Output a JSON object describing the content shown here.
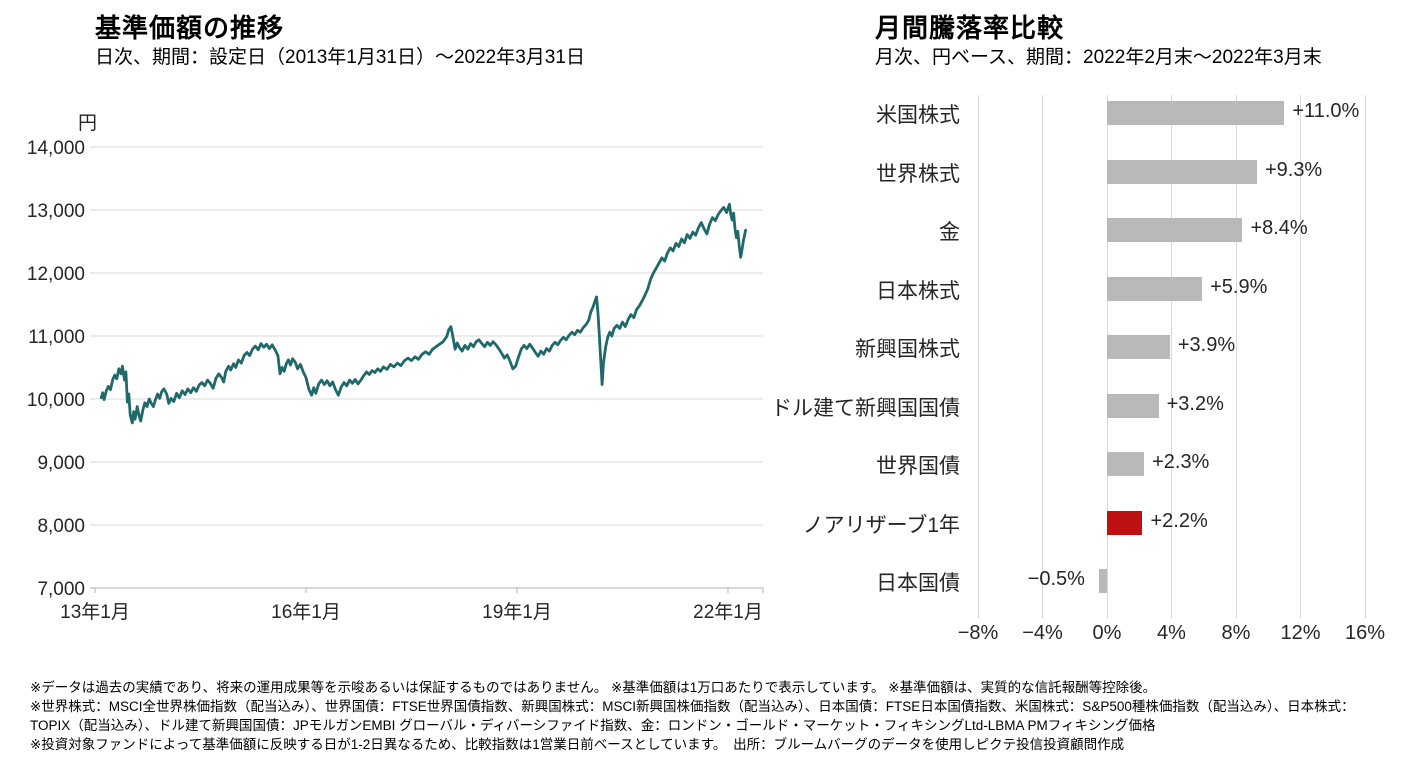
{
  "page": {
    "background": "#ffffff",
    "text_color": "#000000"
  },
  "chart_data": [
    {
      "type": "line",
      "title": "基準価額の推移",
      "subtitle": "日次、期間：設定日（2013年1月31日）～2022年3月31日",
      "unit_label": "円",
      "series_name": "基準価額",
      "line_color": "#20696b",
      "grid": "horizontal",
      "gridline_color": "#d9d9d9",
      "axis_color": "#bfbfbf",
      "ylim": [
        7000,
        14000
      ],
      "y_ticks": [
        14000,
        13000,
        12000,
        11000,
        10000,
        9000,
        8000,
        7000
      ],
      "y_tick_labels": [
        "14,000",
        "13,000",
        "12,000",
        "11,000",
        "10,000",
        "9,000",
        "8,000",
        "7,000"
      ],
      "xlim": [
        2012.93,
        2022.5
      ],
      "x_ticks": [
        2013,
        2016,
        2019,
        2022
      ],
      "x_tick_labels": [
        "13年1月",
        "16年1月",
        "19年1月",
        "22年1月"
      ],
      "points": [
        [
          2013.09,
          10020
        ],
        [
          2013.11,
          10100
        ],
        [
          2013.13,
          9990
        ],
        [
          2013.16,
          10130
        ],
        [
          2013.19,
          10200
        ],
        [
          2013.22,
          10150
        ],
        [
          2013.25,
          10300
        ],
        [
          2013.28,
          10380
        ],
        [
          2013.31,
          10320
        ],
        [
          2013.34,
          10480
        ],
        [
          2013.37,
          10400
        ],
        [
          2013.39,
          10520
        ],
        [
          2013.42,
          10300
        ],
        [
          2013.44,
          10430
        ],
        [
          2013.46,
          9950
        ],
        [
          2013.48,
          10080
        ],
        [
          2013.5,
          9750
        ],
        [
          2013.53,
          9620
        ],
        [
          2013.55,
          9800
        ],
        [
          2013.57,
          9680
        ],
        [
          2013.6,
          9880
        ],
        [
          2013.63,
          9720
        ],
        [
          2013.65,
          9650
        ],
        [
          2013.68,
          9820
        ],
        [
          2013.71,
          9940
        ],
        [
          2013.74,
          9880
        ],
        [
          2013.77,
          10000
        ],
        [
          2013.8,
          9930
        ],
        [
          2013.83,
          9880
        ],
        [
          2013.86,
          9990
        ],
        [
          2013.89,
          10080
        ],
        [
          2013.92,
          10010
        ],
        [
          2013.95,
          10120
        ],
        [
          2013.98,
          10160
        ],
        [
          2014.02,
          10080
        ],
        [
          2014.05,
          9930
        ],
        [
          2014.08,
          10010
        ],
        [
          2014.12,
          9960
        ],
        [
          2014.16,
          10090
        ],
        [
          2014.2,
          10020
        ],
        [
          2014.24,
          10130
        ],
        [
          2014.28,
          10070
        ],
        [
          2014.32,
          10160
        ],
        [
          2014.36,
          10100
        ],
        [
          2014.4,
          10180
        ],
        [
          2014.44,
          10120
        ],
        [
          2014.48,
          10220
        ],
        [
          2014.52,
          10260
        ],
        [
          2014.56,
          10210
        ],
        [
          2014.6,
          10300
        ],
        [
          2014.64,
          10250
        ],
        [
          2014.68,
          10170
        ],
        [
          2014.72,
          10330
        ],
        [
          2014.76,
          10400
        ],
        [
          2014.8,
          10340
        ],
        [
          2014.83,
          10270
        ],
        [
          2014.86,
          10440
        ],
        [
          2014.9,
          10520
        ],
        [
          2014.93,
          10460
        ],
        [
          2014.97,
          10560
        ],
        [
          2015.0,
          10500
        ],
        [
          2015.04,
          10620
        ],
        [
          2015.08,
          10570
        ],
        [
          2015.12,
          10690
        ],
        [
          2015.16,
          10740
        ],
        [
          2015.2,
          10690
        ],
        [
          2015.24,
          10790
        ],
        [
          2015.28,
          10840
        ],
        [
          2015.32,
          10780
        ],
        [
          2015.36,
          10880
        ],
        [
          2015.4,
          10820
        ],
        [
          2015.44,
          10870
        ],
        [
          2015.48,
          10800
        ],
        [
          2015.52,
          10860
        ],
        [
          2015.56,
          10780
        ],
        [
          2015.6,
          10690
        ],
        [
          2015.63,
          10400
        ],
        [
          2015.66,
          10500
        ],
        [
          2015.69,
          10440
        ],
        [
          2015.72,
          10560
        ],
        [
          2015.75,
          10620
        ],
        [
          2015.78,
          10540
        ],
        [
          2015.81,
          10640
        ],
        [
          2015.85,
          10580
        ],
        [
          2015.88,
          10480
        ],
        [
          2015.92,
          10550
        ],
        [
          2015.96,
          10430
        ],
        [
          2016.0,
          10340
        ],
        [
          2016.04,
          10160
        ],
        [
          2016.08,
          10060
        ],
        [
          2016.11,
          10180
        ],
        [
          2016.14,
          10090
        ],
        [
          2016.18,
          10240
        ],
        [
          2016.22,
          10300
        ],
        [
          2016.26,
          10230
        ],
        [
          2016.3,
          10290
        ],
        [
          2016.34,
          10210
        ],
        [
          2016.38,
          10270
        ],
        [
          2016.42,
          10150
        ],
        [
          2016.46,
          10060
        ],
        [
          2016.5,
          10190
        ],
        [
          2016.54,
          10260
        ],
        [
          2016.58,
          10210
        ],
        [
          2016.62,
          10300
        ],
        [
          2016.66,
          10250
        ],
        [
          2016.7,
          10310
        ],
        [
          2016.74,
          10240
        ],
        [
          2016.78,
          10300
        ],
        [
          2016.82,
          10370
        ],
        [
          2016.86,
          10430
        ],
        [
          2016.9,
          10390
        ],
        [
          2016.94,
          10450
        ],
        [
          2016.98,
          10420
        ],
        [
          2017.02,
          10480
        ],
        [
          2017.06,
          10440
        ],
        [
          2017.1,
          10510
        ],
        [
          2017.15,
          10470
        ],
        [
          2017.2,
          10550
        ],
        [
          2017.25,
          10510
        ],
        [
          2017.3,
          10570
        ],
        [
          2017.35,
          10530
        ],
        [
          2017.4,
          10610
        ],
        [
          2017.45,
          10650
        ],
        [
          2017.5,
          10610
        ],
        [
          2017.55,
          10670
        ],
        [
          2017.6,
          10630
        ],
        [
          2017.65,
          10710
        ],
        [
          2017.7,
          10750
        ],
        [
          2017.75,
          10710
        ],
        [
          2017.8,
          10790
        ],
        [
          2017.85,
          10830
        ],
        [
          2017.9,
          10870
        ],
        [
          2017.95,
          10910
        ],
        [
          2018.0,
          10990
        ],
        [
          2018.03,
          11100
        ],
        [
          2018.06,
          11150
        ],
        [
          2018.09,
          10980
        ],
        [
          2018.12,
          10790
        ],
        [
          2018.15,
          10890
        ],
        [
          2018.18,
          10820
        ],
        [
          2018.22,
          10760
        ],
        [
          2018.26,
          10850
        ],
        [
          2018.3,
          10790
        ],
        [
          2018.34,
          10880
        ],
        [
          2018.38,
          10830
        ],
        [
          2018.42,
          10910
        ],
        [
          2018.46,
          10940
        ],
        [
          2018.5,
          10880
        ],
        [
          2018.54,
          10830
        ],
        [
          2018.58,
          10900
        ],
        [
          2018.62,
          10850
        ],
        [
          2018.66,
          10910
        ],
        [
          2018.7,
          10860
        ],
        [
          2018.74,
          10800
        ],
        [
          2018.78,
          10730
        ],
        [
          2018.82,
          10650
        ],
        [
          2018.86,
          10700
        ],
        [
          2018.9,
          10600
        ],
        [
          2018.94,
          10480
        ],
        [
          2018.98,
          10520
        ],
        [
          2019.02,
          10660
        ],
        [
          2019.06,
          10790
        ],
        [
          2019.1,
          10850
        ],
        [
          2019.14,
          10800
        ],
        [
          2019.18,
          10870
        ],
        [
          2019.22,
          10810
        ],
        [
          2019.26,
          10740
        ],
        [
          2019.3,
          10680
        ],
        [
          2019.34,
          10760
        ],
        [
          2019.38,
          10710
        ],
        [
          2019.42,
          10800
        ],
        [
          2019.46,
          10760
        ],
        [
          2019.5,
          10850
        ],
        [
          2019.54,
          10900
        ],
        [
          2019.58,
          10860
        ],
        [
          2019.62,
          10930
        ],
        [
          2019.66,
          10980
        ],
        [
          2019.7,
          10940
        ],
        [
          2019.74,
          11010
        ],
        [
          2019.78,
          11060
        ],
        [
          2019.82,
          11020
        ],
        [
          2019.86,
          11090
        ],
        [
          2019.9,
          11060
        ],
        [
          2019.94,
          11130
        ],
        [
          2019.98,
          11180
        ],
        [
          2020.02,
          11250
        ],
        [
          2020.05,
          11380
        ],
        [
          2020.08,
          11460
        ],
        [
          2020.11,
          11560
        ],
        [
          2020.13,
          11620
        ],
        [
          2020.15,
          11380
        ],
        [
          2020.17,
          11020
        ],
        [
          2020.19,
          10620
        ],
        [
          2020.21,
          10230
        ],
        [
          2020.23,
          10580
        ],
        [
          2020.26,
          10820
        ],
        [
          2020.29,
          10980
        ],
        [
          2020.32,
          11060
        ],
        [
          2020.35,
          11000
        ],
        [
          2020.38,
          11120
        ],
        [
          2020.42,
          11170
        ],
        [
          2020.46,
          11120
        ],
        [
          2020.5,
          11220
        ],
        [
          2020.54,
          11150
        ],
        [
          2020.58,
          11260
        ],
        [
          2020.62,
          11340
        ],
        [
          2020.66,
          11290
        ],
        [
          2020.7,
          11420
        ],
        [
          2020.74,
          11480
        ],
        [
          2020.78,
          11560
        ],
        [
          2020.82,
          11650
        ],
        [
          2020.86,
          11750
        ],
        [
          2020.9,
          11900
        ],
        [
          2020.94,
          12000
        ],
        [
          2020.98,
          12080
        ],
        [
          2021.02,
          12160
        ],
        [
          2021.06,
          12240
        ],
        [
          2021.1,
          12190
        ],
        [
          2021.14,
          12320
        ],
        [
          2021.18,
          12400
        ],
        [
          2021.22,
          12350
        ],
        [
          2021.26,
          12470
        ],
        [
          2021.3,
          12420
        ],
        [
          2021.34,
          12540
        ],
        [
          2021.38,
          12480
        ],
        [
          2021.42,
          12610
        ],
        [
          2021.46,
          12550
        ],
        [
          2021.5,
          12650
        ],
        [
          2021.54,
          12600
        ],
        [
          2021.58,
          12720
        ],
        [
          2021.62,
          12800
        ],
        [
          2021.66,
          12700
        ],
        [
          2021.7,
          12620
        ],
        [
          2021.74,
          12780
        ],
        [
          2021.78,
          12880
        ],
        [
          2021.82,
          12830
        ],
        [
          2021.86,
          12930
        ],
        [
          2021.9,
          12990
        ],
        [
          2021.94,
          13040
        ],
        [
          2021.98,
          12960
        ],
        [
          2022.02,
          13090
        ],
        [
          2022.04,
          12930
        ],
        [
          2022.06,
          12840
        ],
        [
          2022.08,
          12950
        ],
        [
          2022.1,
          12700
        ],
        [
          2022.12,
          12560
        ],
        [
          2022.14,
          12660
        ],
        [
          2022.16,
          12420
        ],
        [
          2022.18,
          12250
        ],
        [
          2022.2,
          12380
        ],
        [
          2022.22,
          12520
        ],
        [
          2022.25,
          12680
        ]
      ]
    },
    {
      "type": "bar",
      "orientation": "horizontal",
      "title": "月間騰落率比較",
      "subtitle": "月次、円ベース、期間：2022年2月末～2022年3月末",
      "categories": [
        "米国株式",
        "世界株式",
        "金",
        "日本株式",
        "新興国株式",
        "ドル建て新興国国債",
        "世界国債",
        "ノアリザーブ1年",
        "日本国債"
      ],
      "values": [
        11.0,
        9.3,
        8.4,
        5.9,
        3.9,
        3.2,
        2.3,
        2.2,
        -0.5
      ],
      "value_labels": [
        "+11.0%",
        "+9.3%",
        "+8.4%",
        "+5.9%",
        "+3.9%",
        "+3.2%",
        "+2.3%",
        "+2.2%",
        "−0.5%"
      ],
      "bar_color": "#b9b9b9",
      "highlight_color": "#be1114",
      "highlight_index": 7,
      "grid": "vertical",
      "gridline_color": "#d9d9d9",
      "xlim": [
        -10,
        18
      ],
      "x_ticks": [
        -8,
        -4,
        0,
        4,
        8,
        12,
        16
      ],
      "x_tick_labels": [
        "−8%",
        "−4%",
        "0%",
        "4%",
        "8%",
        "12%",
        "16%"
      ]
    }
  ],
  "footnotes": [
    "※データは過去の実績であり、将来の運用成果等を示唆あるいは保証するものではありません。 ※基準価額は1万口あたりで表示しています。 ※基準価額は、実質的な信託報酬等控除後。",
    "※世界株式：MSCI全世界株価指数（配当込み）、世界国債：FTSE世界国債指数、新興国株式：MSCI新興国株価指数（配当込み）、日本国債：FTSE日本国債指数、米国株式：S&P500種株価指数（配当込み）、日本株式：",
    "TOPIX（配当込み）、ドル建て新興国国債：JPモルガンEMBI グローバル・ディバーシファイド指数、金：ロンドン・ゴールド・マーケット・フィキシングLtd-LBMA PMフィキシング価格",
    "※投資対象ファンドによって基準価額に反映する日が1-2日異なるため、比較指数は1営業日前ベースとしています。　出所：ブルームバーグのデータを使用しピクテ投信投資顧問作成"
  ]
}
